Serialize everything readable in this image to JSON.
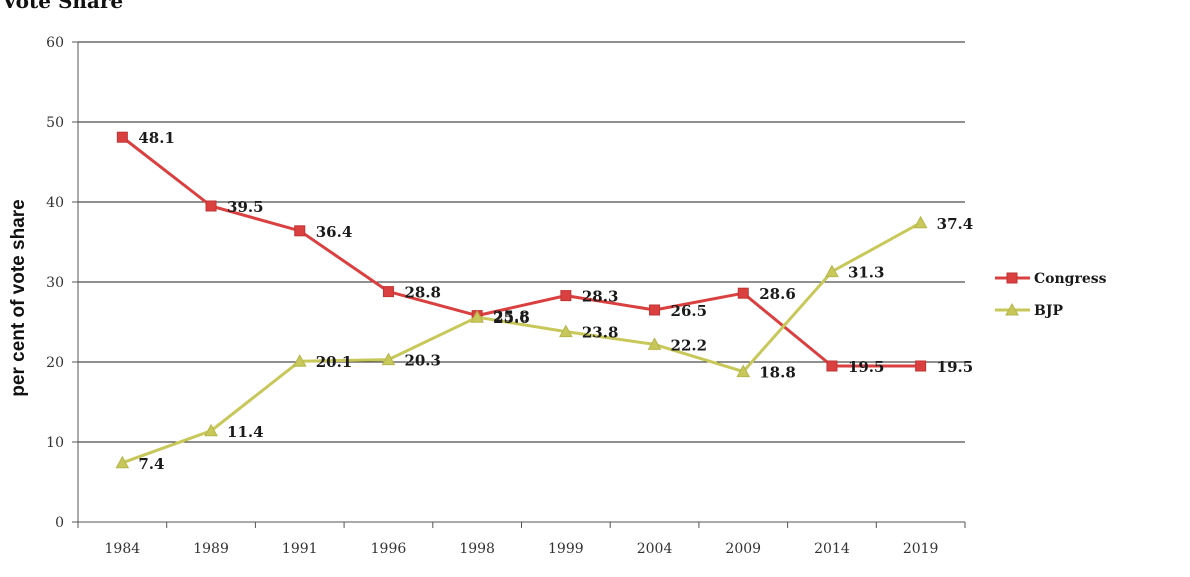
{
  "colors": {
    "congress": "#d9403f",
    "bjp": "#c8c85a",
    "grid": "#222222",
    "axis": "#555555"
  },
  "chart_data": {
    "type": "line",
    "title": "Vote Share",
    "xlabel": "",
    "ylabel": "per cent of vote share",
    "categories": [
      "1984",
      "1989",
      "1991",
      "1996",
      "1998",
      "1999",
      "2004",
      "2009",
      "2014",
      "2019"
    ],
    "ylim": [
      0,
      60
    ],
    "yticks": [
      0,
      10,
      20,
      30,
      40,
      50,
      60
    ],
    "grid": true,
    "legend": "right",
    "data_labels": true,
    "series": [
      {
        "name": "Congress",
        "values": [
          48.1,
          39.5,
          36.4,
          28.8,
          25.8,
          28.3,
          26.5,
          28.6,
          19.5,
          19.5
        ],
        "color": "#d9403f",
        "marker": "square"
      },
      {
        "name": "BJP",
        "values": [
          7.4,
          11.4,
          20.1,
          20.3,
          25.6,
          23.8,
          22.2,
          18.8,
          31.3,
          37.4
        ],
        "color": "#c8c85a",
        "marker": "triangle"
      }
    ]
  }
}
